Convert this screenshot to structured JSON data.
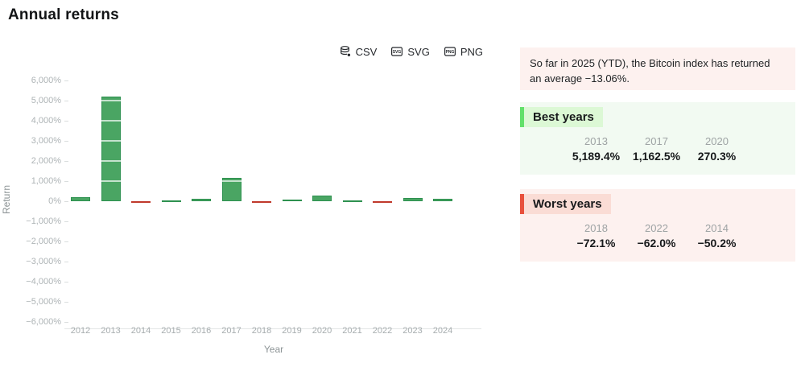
{
  "page": {
    "title": "Annual returns"
  },
  "toolbar": {
    "csv_label": "CSV",
    "svg_label": "SVG",
    "png_label": "PNG",
    "csv_icon": "database-icon",
    "svg_icon": "svg-file-icon",
    "png_icon": "png-file-icon"
  },
  "chart_data": {
    "type": "bar",
    "title": "Annual returns",
    "xlabel": "Year",
    "ylabel": "Return",
    "categories": [
      "2012",
      "2013",
      "2014",
      "2015",
      "2016",
      "2017",
      "2018",
      "2019",
      "2020",
      "2021",
      "2022",
      "2023",
      "2024"
    ],
    "values": [
      186.1,
      5189.4,
      -50.2,
      35.4,
      124.6,
      1162.5,
      -72.1,
      93.8,
      270.3,
      59.8,
      -62.0,
      155.4,
      121.1
    ],
    "ylim": [
      -6000,
      6000
    ],
    "ytick_step": 1000,
    "ytick_values": [
      6000,
      5000,
      4000,
      3000,
      2000,
      1000,
      0,
      -1000,
      -2000,
      -3000,
      -4000,
      -5000,
      -6000
    ],
    "ytick_labels": [
      "6,000%",
      "5,000%",
      "4,000%",
      "3,000%",
      "2,000%",
      "1,000%",
      "0%",
      "−1,000%",
      "−2,000%",
      "−3,000%",
      "−4,000%",
      "−5,000%",
      "−6,000%"
    ],
    "grid": "white gridlines drawn over bars",
    "legend": "none",
    "positive_color": "#4aa563",
    "positive_border": "#2e9150",
    "negative_color": "#d2503c",
    "negative_border": "#c0392b"
  },
  "summary": {
    "ytd_note": "So far in 2025 (YTD), the Bitcoin index has returned an average −13.06%.",
    "best_years": {
      "title": "Best years",
      "items": [
        {
          "year": "2013",
          "value": "5,189.4%"
        },
        {
          "year": "2017",
          "value": "1,162.5%"
        },
        {
          "year": "2020",
          "value": "270.3%"
        }
      ]
    },
    "worst_years": {
      "title": "Worst years",
      "items": [
        {
          "year": "2018",
          "value": "−72.1%"
        },
        {
          "year": "2022",
          "value": "−62.0%"
        },
        {
          "year": "2014",
          "value": "−50.2%"
        }
      ]
    }
  },
  "colors": {
    "panel_pink_bg": "#fdf1ef",
    "panel_green_bg": "#f2faf2",
    "best_accent": "#62e06a",
    "best_title_highlight": "#dcf8d5",
    "worst_accent": "#e8503c",
    "worst_title_highlight": "#fadcd5"
  }
}
